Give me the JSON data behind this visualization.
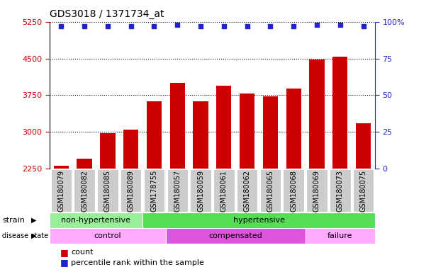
{
  "title": "GDS3018 / 1371734_at",
  "samples": [
    "GSM180079",
    "GSM180082",
    "GSM180085",
    "GSM180089",
    "GSM178755",
    "GSM180057",
    "GSM180059",
    "GSM180061",
    "GSM180062",
    "GSM180065",
    "GSM180068",
    "GSM180069",
    "GSM180073",
    "GSM180075"
  ],
  "counts": [
    2310,
    2450,
    2980,
    3040,
    3620,
    4000,
    3620,
    3950,
    3790,
    3720,
    3890,
    4480,
    4540,
    3170
  ],
  "percentile_ranks": [
    97,
    97,
    97,
    97,
    97,
    98,
    97,
    97,
    97,
    97,
    97,
    98,
    98,
    97
  ],
  "ylim_left": [
    2250,
    5250
  ],
  "ylim_right": [
    0,
    100
  ],
  "yticks_left": [
    2250,
    3000,
    3750,
    4500,
    5250
  ],
  "yticks_right": [
    0,
    25,
    50,
    75,
    100
  ],
  "bar_color": "#cc0000",
  "dot_color": "#2222cc",
  "strain_groups": [
    {
      "label": "non-hypertensive",
      "start": 0,
      "end": 4,
      "color": "#99ee99"
    },
    {
      "label": "hypertensive",
      "start": 4,
      "end": 14,
      "color": "#55dd55"
    }
  ],
  "disease_groups": [
    {
      "label": "control",
      "start": 0,
      "end": 5,
      "color": "#ffaaff"
    },
    {
      "label": "compensated",
      "start": 5,
      "end": 11,
      "color": "#dd55dd"
    },
    {
      "label": "failure",
      "start": 11,
      "end": 14,
      "color": "#ffaaff"
    }
  ],
  "legend_items": [
    {
      "label": "count",
      "color": "#cc0000"
    },
    {
      "label": "percentile rank within the sample",
      "color": "#2222cc"
    }
  ],
  "tick_label_color": "#cc0000",
  "right_axis_color": "#2222cc",
  "tick_bg_color": "#cccccc",
  "spine_color": "#000000",
  "grid_linestyle": "dotted",
  "grid_color": "#000000",
  "grid_linewidth": 0.8
}
